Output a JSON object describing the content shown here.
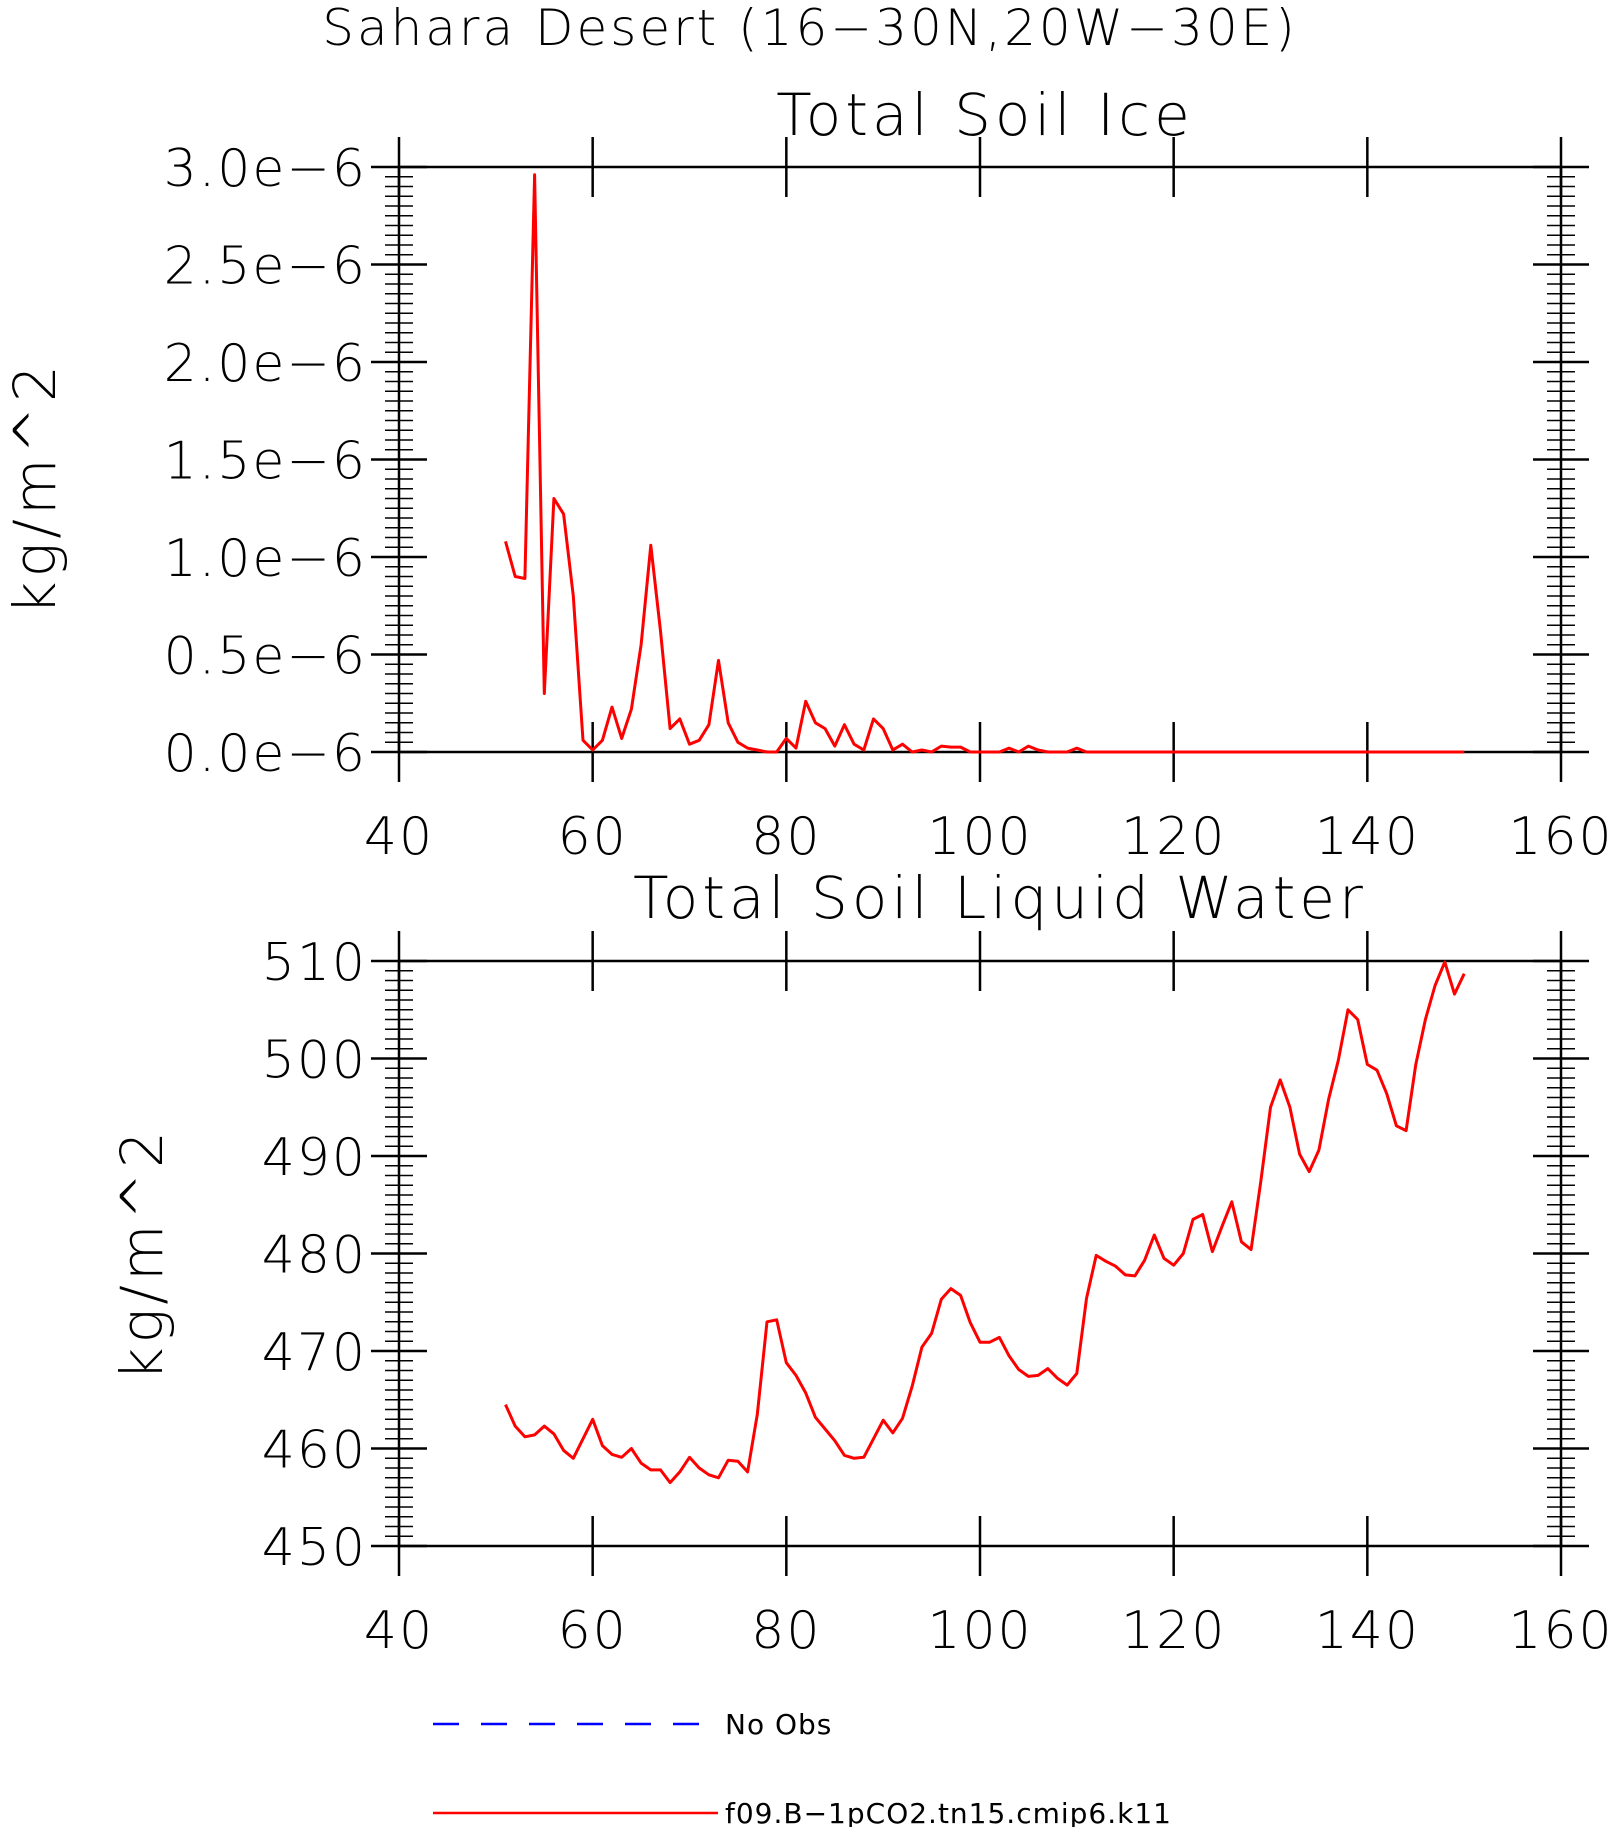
{
  "figure_title": "Sahara Desert (16−30N,20W−30E)",
  "chart_data": [
    {
      "type": "line",
      "title": "Total Soil Ice",
      "xlabel": "",
      "ylabel": "kg/m^2",
      "xlim": [
        40,
        160
      ],
      "ylim": [
        0,
        3e-06
      ],
      "xticks": [
        40,
        60,
        80,
        100,
        120,
        140,
        160
      ],
      "xtick_labels": [
        "40",
        "60",
        "80",
        "100",
        "120",
        "140",
        "160"
      ],
      "yticks": [
        0,
        5e-07,
        1e-06,
        1.5e-06,
        2e-06,
        2.5e-06,
        3e-06
      ],
      "ytick_labels": [
        "0.0e−6",
        "0.5e−6",
        "1.0e−6",
        "1.5e−6",
        "2.0e−6",
        "2.5e−6",
        "3.0e−6"
      ],
      "grid": false,
      "series": [
        {
          "name": "f09.B−1pCO2.tn15.cmip6.k11",
          "color": "#ff0000",
          "x": [
            51,
            52,
            53,
            54,
            55,
            56,
            57,
            58,
            59,
            60,
            61,
            62,
            63,
            64,
            65,
            66,
            67,
            68,
            69,
            70,
            71,
            72,
            73,
            74,
            75,
            76,
            77,
            78,
            79,
            80,
            81,
            82,
            83,
            84,
            85,
            86,
            87,
            88,
            89,
            90,
            91,
            92,
            93,
            94,
            95,
            96,
            97,
            98,
            99,
            100,
            101,
            102,
            103,
            104,
            105,
            106,
            107,
            108,
            109,
            110,
            111,
            112,
            115,
            120,
            130,
            140,
            150
          ],
          "y": [
            1.08e-06,
            9e-07,
            8.9e-07,
            2.96e-06,
            3e-07,
            1.3e-06,
            1.22e-06,
            8e-07,
            6e-08,
            1e-08,
            6e-08,
            2.3e-07,
            7e-08,
            2.2e-07,
            5.5e-07,
            1.06e-06,
            6.2e-07,
            1.2e-07,
            1.7e-07,
            4e-08,
            6e-08,
            1.4e-07,
            4.7e-07,
            1.5e-07,
            5e-08,
            2e-08,
            1e-08,
            0.0,
            0.0,
            7e-08,
            2e-08,
            2.6e-07,
            1.5e-07,
            1.2e-07,
            3e-08,
            1.4e-07,
            4e-08,
            1e-08,
            1.7e-07,
            1.2e-07,
            1e-08,
            4e-08,
            0.0,
            1e-08,
            0.0,
            3e-08,
            2.5e-08,
            2.5e-08,
            0.0,
            0.0,
            0.0,
            0.0,
            2e-08,
            0.0,
            3e-08,
            1e-08,
            0.0,
            0.0,
            0.0,
            2e-08,
            0.0,
            0.0,
            0.0,
            0.0,
            0.0,
            0.0,
            0.0
          ]
        }
      ]
    },
    {
      "type": "line",
      "title": "Total Soil Liquid Water",
      "xlabel": "",
      "ylabel": "kg/m^2",
      "xlim": [
        40,
        160
      ],
      "ylim": [
        450,
        510
      ],
      "xticks": [
        40,
        60,
        80,
        100,
        120,
        140,
        160
      ],
      "xtick_labels": [
        "40",
        "60",
        "80",
        "100",
        "120",
        "140",
        "160"
      ],
      "yticks": [
        450,
        460,
        470,
        480,
        490,
        500,
        510
      ],
      "ytick_labels": [
        "450",
        "460",
        "470",
        "480",
        "490",
        "500",
        "510"
      ],
      "grid": false,
      "series": [
        {
          "name": "f09.B−1pCO2.tn15.cmip6.k11",
          "color": "#ff0000",
          "x": [
            51,
            52,
            53,
            54,
            55,
            56,
            57,
            58,
            59,
            60,
            61,
            62,
            63,
            64,
            65,
            66,
            67,
            68,
            69,
            70,
            71,
            72,
            73,
            74,
            75,
            76,
            77,
            78,
            79,
            80,
            81,
            82,
            83,
            84,
            85,
            86,
            87,
            88,
            89,
            90,
            91,
            92,
            93,
            94,
            95,
            96,
            97,
            98,
            99,
            100,
            101,
            102,
            103,
            104,
            105,
            106,
            107,
            108,
            109,
            110,
            111,
            112,
            113,
            114,
            115,
            116,
            117,
            118,
            119,
            120,
            121,
            122,
            123,
            124,
            125,
            126,
            127,
            128,
            129,
            130,
            131,
            132,
            133,
            134,
            135,
            136,
            137,
            138,
            139,
            140,
            141,
            142,
            143,
            144,
            145,
            146,
            147,
            148,
            149,
            150
          ],
          "y": [
            464.5,
            462.3,
            461.2,
            461.4,
            462.3,
            461.5,
            459.8,
            459.0,
            461.0,
            463.0,
            460.3,
            459.4,
            459.1,
            460.0,
            458.5,
            457.8,
            457.8,
            456.5,
            457.6,
            459.1,
            458.0,
            457.3,
            457.0,
            458.8,
            458.7,
            457.6,
            463.5,
            473.0,
            473.2,
            468.8,
            467.5,
            465.7,
            463.2,
            462.0,
            460.8,
            459.3,
            459.0,
            459.1,
            461.0,
            462.9,
            461.6,
            463.1,
            466.4,
            470.4,
            471.8,
            475.3,
            476.4,
            475.7,
            472.9,
            470.9,
            470.9,
            471.4,
            469.5,
            468.1,
            467.4,
            467.5,
            468.2,
            467.2,
            466.5,
            467.7,
            475.4,
            479.8,
            479.2,
            478.7,
            477.8,
            477.7,
            479.3,
            481.9,
            479.5,
            478.8,
            480.0,
            483.5,
            484.0,
            480.2,
            482.8,
            485.3,
            481.2,
            480.4,
            487.4,
            495.0,
            497.8,
            495.0,
            490.2,
            488.4,
            490.6,
            495.8,
            499.8,
            505.0,
            504.0,
            499.4,
            498.8,
            496.4,
            493.1,
            492.6,
            499.4,
            504.0,
            507.5,
            509.9,
            506.6,
            508.7
          ]
        }
      ]
    }
  ],
  "legend": [
    {
      "label": "No Obs",
      "color": "#0000ff",
      "style": "dashed"
    },
    {
      "label": "f09.B−1pCO2.tn15.cmip6.k11",
      "color": "#ff0000",
      "style": "solid"
    }
  ]
}
